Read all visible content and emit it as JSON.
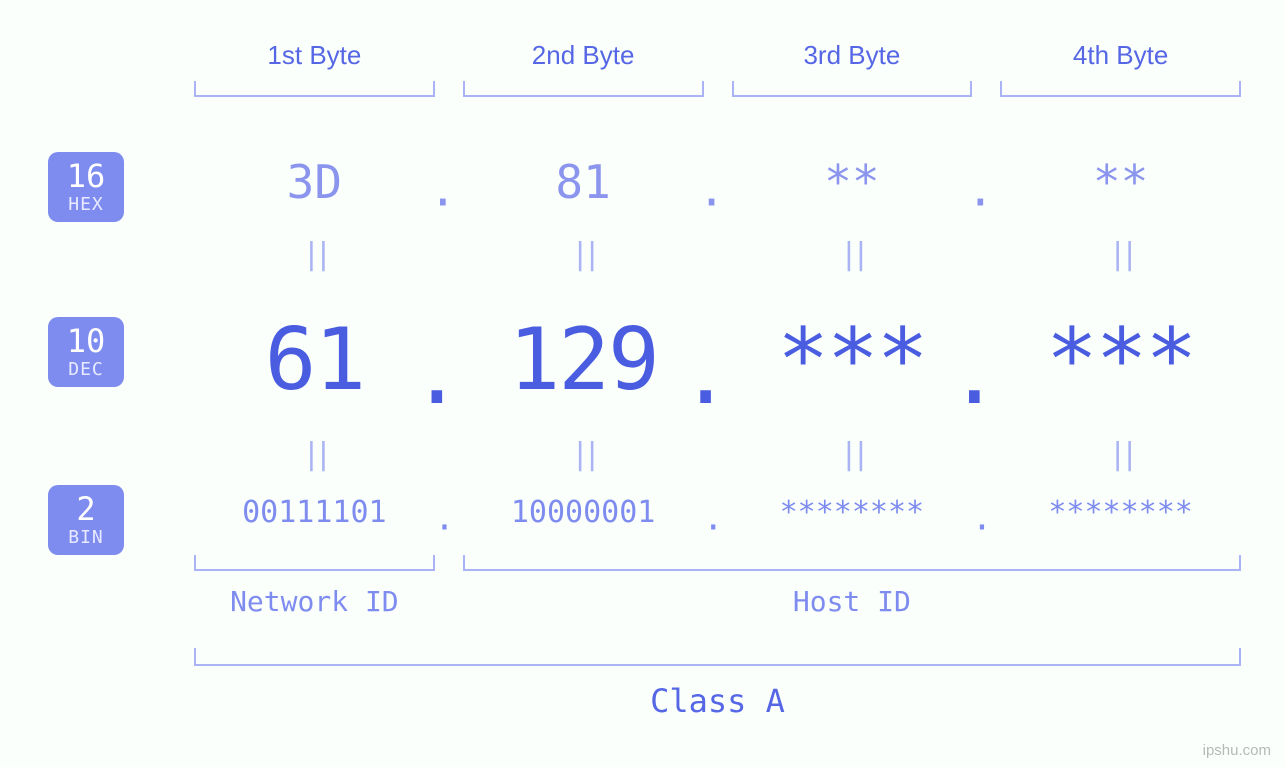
{
  "meta": {
    "watermark": "ipshu.com",
    "background_color": "#fafffc"
  },
  "colors": {
    "primary": "#4a5de0",
    "secondary": "#7f8cef",
    "light": "#aab3f3",
    "badge_bg": "#7f8cef",
    "badge_fg": "#ffffff"
  },
  "byte_headers": [
    "1st Byte",
    "2nd Byte",
    "3rd Byte",
    "4th Byte"
  ],
  "bases": {
    "hex": {
      "num": "16",
      "label": "HEX"
    },
    "dec": {
      "num": "10",
      "label": "DEC"
    },
    "bin": {
      "num": "2",
      "label": "BIN"
    }
  },
  "equals_glyph": "||",
  "octets": {
    "hex": [
      "3D",
      "81",
      "**",
      "**"
    ],
    "dec": [
      "61",
      "129",
      "***",
      "***"
    ],
    "bin": [
      "00111101",
      "10000001",
      "********",
      "********"
    ]
  },
  "dot": ".",
  "sections": {
    "network": {
      "label": "Network ID",
      "span_octets": 1
    },
    "host": {
      "label": "Host ID",
      "span_octets": 3
    }
  },
  "ip_class": {
    "label": "Class A"
  },
  "font": {
    "mono": "Consolas, Menlo, Monaco, monospace",
    "header_size_pt": 20,
    "hex_size_pt": 34,
    "dec_size_pt": 64,
    "bin_size_pt": 22,
    "section_size_pt": 21,
    "class_size_pt": 24
  }
}
